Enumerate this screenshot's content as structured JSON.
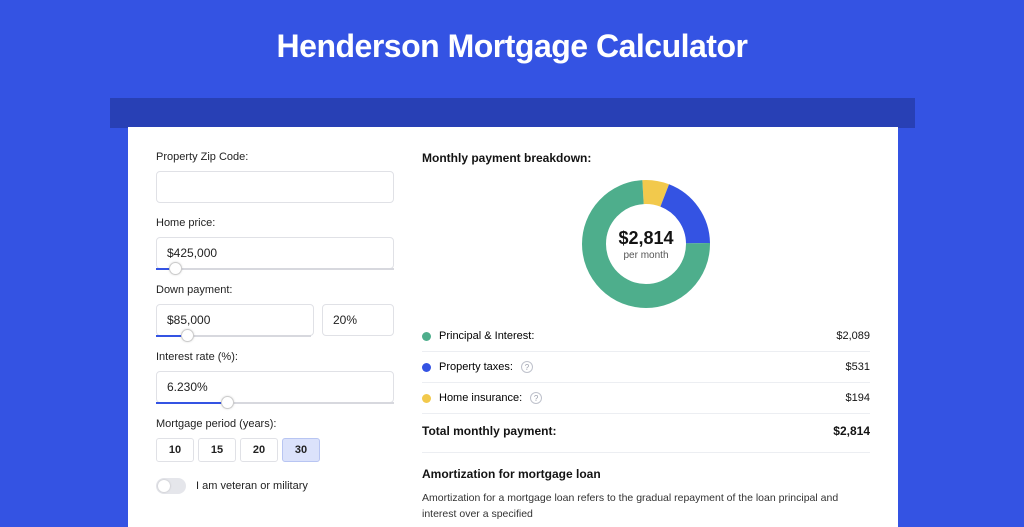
{
  "page": {
    "title": "Henderson Mortgage Calculator"
  },
  "colors": {
    "page_bg": "#3453e3",
    "shadow_bar": "#2840b5",
    "card_bg": "#ffffff",
    "input_border": "#e0e1e6",
    "slider_fill": "#3453e3",
    "slider_track": "#d7d8de",
    "period_active_bg": "#dbe2fb",
    "period_active_border": "#b8c5f2",
    "divider": "#eceef2",
    "text_primary": "#131313"
  },
  "form": {
    "zip": {
      "label": "Property Zip Code:",
      "value": ""
    },
    "home_price": {
      "label": "Home price:",
      "value": "$425,000",
      "slider_pct": 8
    },
    "down_payment": {
      "label": "Down payment:",
      "value": "$85,000",
      "pct_value": "20%",
      "slider_pct": 20
    },
    "interest_rate": {
      "label": "Interest rate (%):",
      "value": "6.230%",
      "slider_pct": 30
    },
    "mortgage_period": {
      "label": "Mortgage period (years):",
      "options": [
        "10",
        "15",
        "20",
        "30"
      ],
      "active_index": 3
    },
    "veteran": {
      "label": "I am veteran or military",
      "checked": false
    }
  },
  "breakdown": {
    "title": "Monthly payment breakdown:",
    "donut": {
      "center_value": "$2,814",
      "center_sub": "per month",
      "slices": [
        {
          "label": "Principal & Interest:",
          "value": 2089,
          "value_display": "$2,089",
          "color": "#4eae8c",
          "info": false
        },
        {
          "label": "Property taxes:",
          "value": 531,
          "value_display": "$531",
          "color": "#3453e3",
          "info": true
        },
        {
          "label": "Home insurance:",
          "value": 194,
          "value_display": "$194",
          "color": "#f2c94c",
          "info": true
        }
      ],
      "total": 2814,
      "radius": 52,
      "stroke_width": 24
    },
    "total_label": "Total monthly payment:",
    "total_value": "$2,814"
  },
  "amortization": {
    "title": "Amortization for mortgage loan",
    "body": "Amortization for a mortgage loan refers to the gradual repayment of the loan principal and interest over a specified"
  }
}
